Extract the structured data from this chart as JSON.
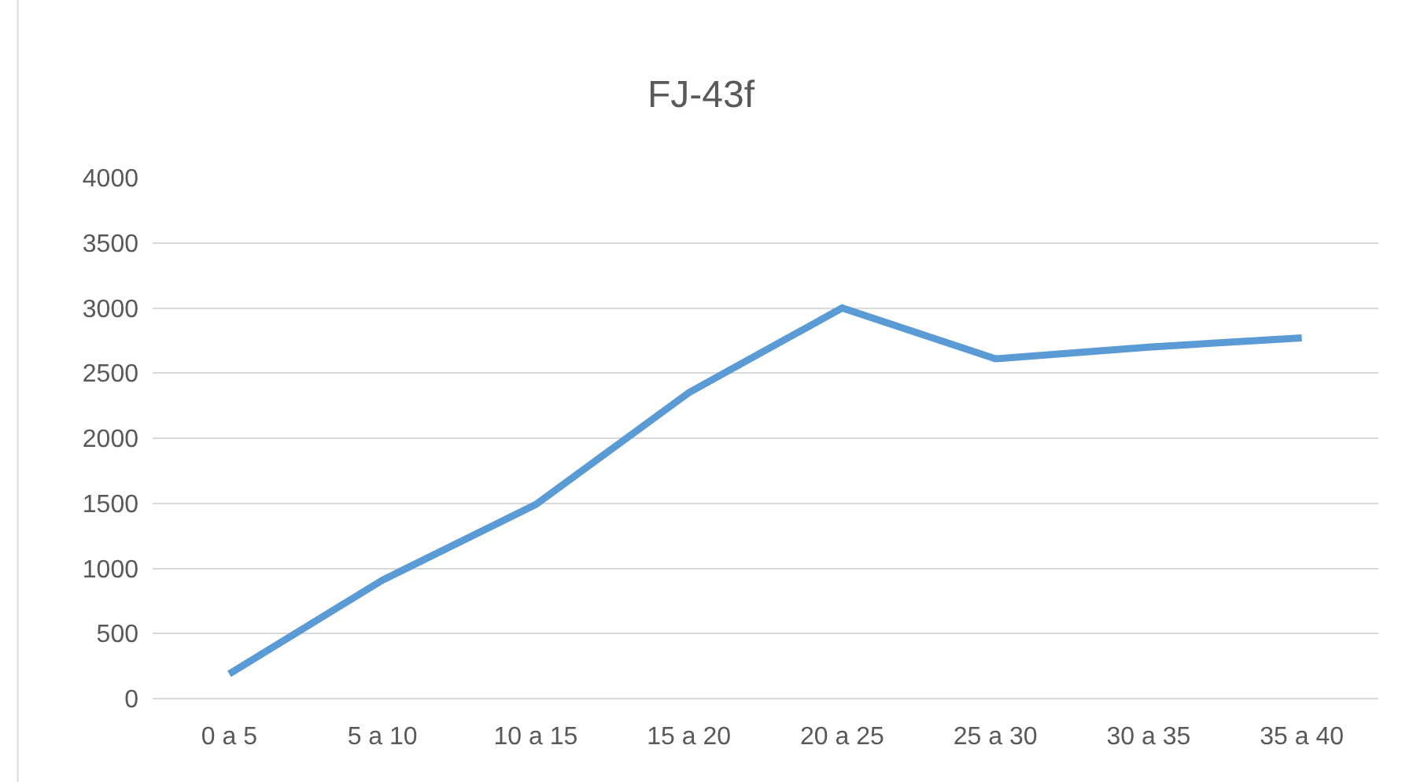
{
  "chart_data": {
    "type": "line",
    "title": "FJ-43f",
    "categories": [
      "0 a 5",
      "5 a 10",
      "10 a 15",
      "15 a 20",
      "20 a 25",
      "25 a 30",
      "30 a 35",
      "35 a 40"
    ],
    "series": [
      {
        "color": "#5b9bd5",
        "values": [
          190,
          910,
          1490,
          2350,
          3000,
          2610,
          2700,
          2770
        ]
      }
    ],
    "ylim": [
      0,
      4000
    ],
    "yticks": [
      0,
      500,
      1000,
      1500,
      2000,
      2500,
      3000,
      3500,
      4000
    ],
    "grid": "y",
    "marker": "none",
    "line_style": "solid"
  }
}
